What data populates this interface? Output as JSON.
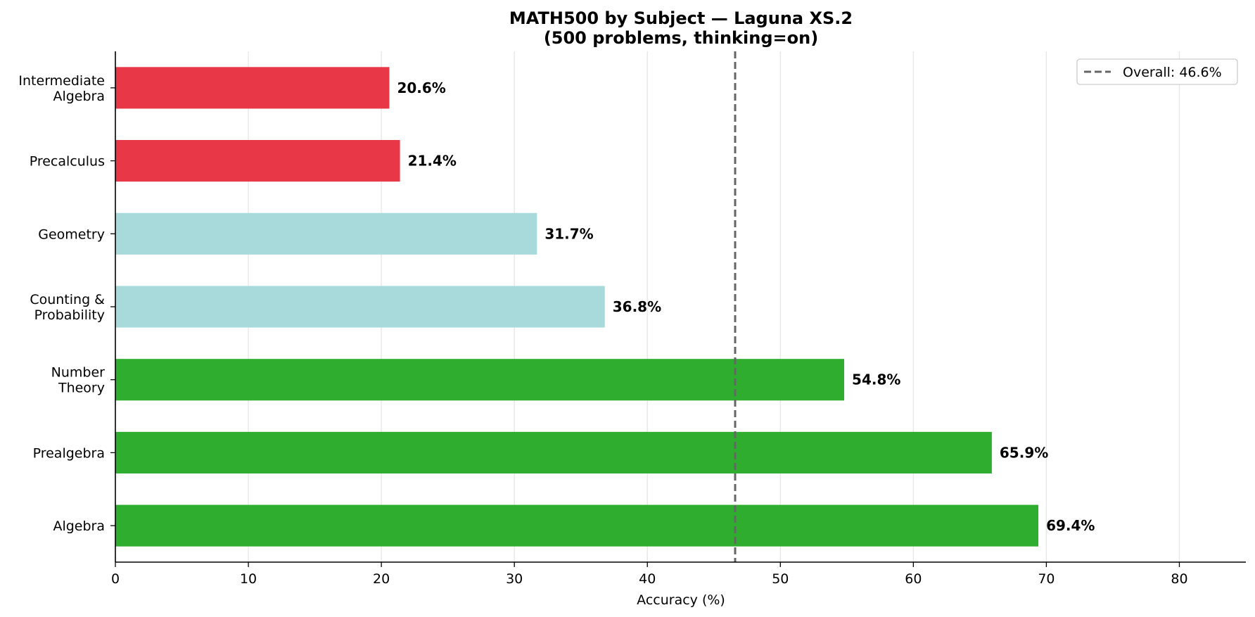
{
  "chart_data": {
    "type": "bar",
    "orientation": "horizontal",
    "title_lines": [
      "MATH500 by Subject — Laguna XS.2",
      "(500 problems, thinking=on)"
    ],
    "xlabel": "Accuracy (%)",
    "ylabel": "",
    "xlim": [
      0,
      85
    ],
    "xticks": [
      0,
      10,
      20,
      30,
      40,
      50,
      60,
      70,
      80
    ],
    "grid": "vertical",
    "categories": [
      [
        "Intermediate",
        "Algebra"
      ],
      [
        "Precalculus"
      ],
      [
        "Geometry"
      ],
      [
        "Counting &",
        "Probability"
      ],
      [
        "Number",
        "Theory"
      ],
      [
        "Prealgebra"
      ],
      [
        "Algebra"
      ]
    ],
    "values": [
      20.6,
      21.4,
      31.7,
      36.8,
      54.8,
      65.9,
      69.4
    ],
    "value_labels": [
      "20.6%",
      "21.4%",
      "31.7%",
      "36.8%",
      "54.8%",
      "65.9%",
      "69.4%"
    ],
    "bar_colors": [
      "#e83848",
      "#e83848",
      "#a8dadc",
      "#a8dadc",
      "#2ead2f",
      "#2ead2f",
      "#2ead2f"
    ],
    "reference_line": {
      "value": 46.6,
      "label": "Overall: 46.6%",
      "color": "#666666",
      "style": "dashed"
    },
    "legend": {
      "placement": "top-right",
      "entries": [
        "Overall: 46.6%"
      ]
    }
  }
}
